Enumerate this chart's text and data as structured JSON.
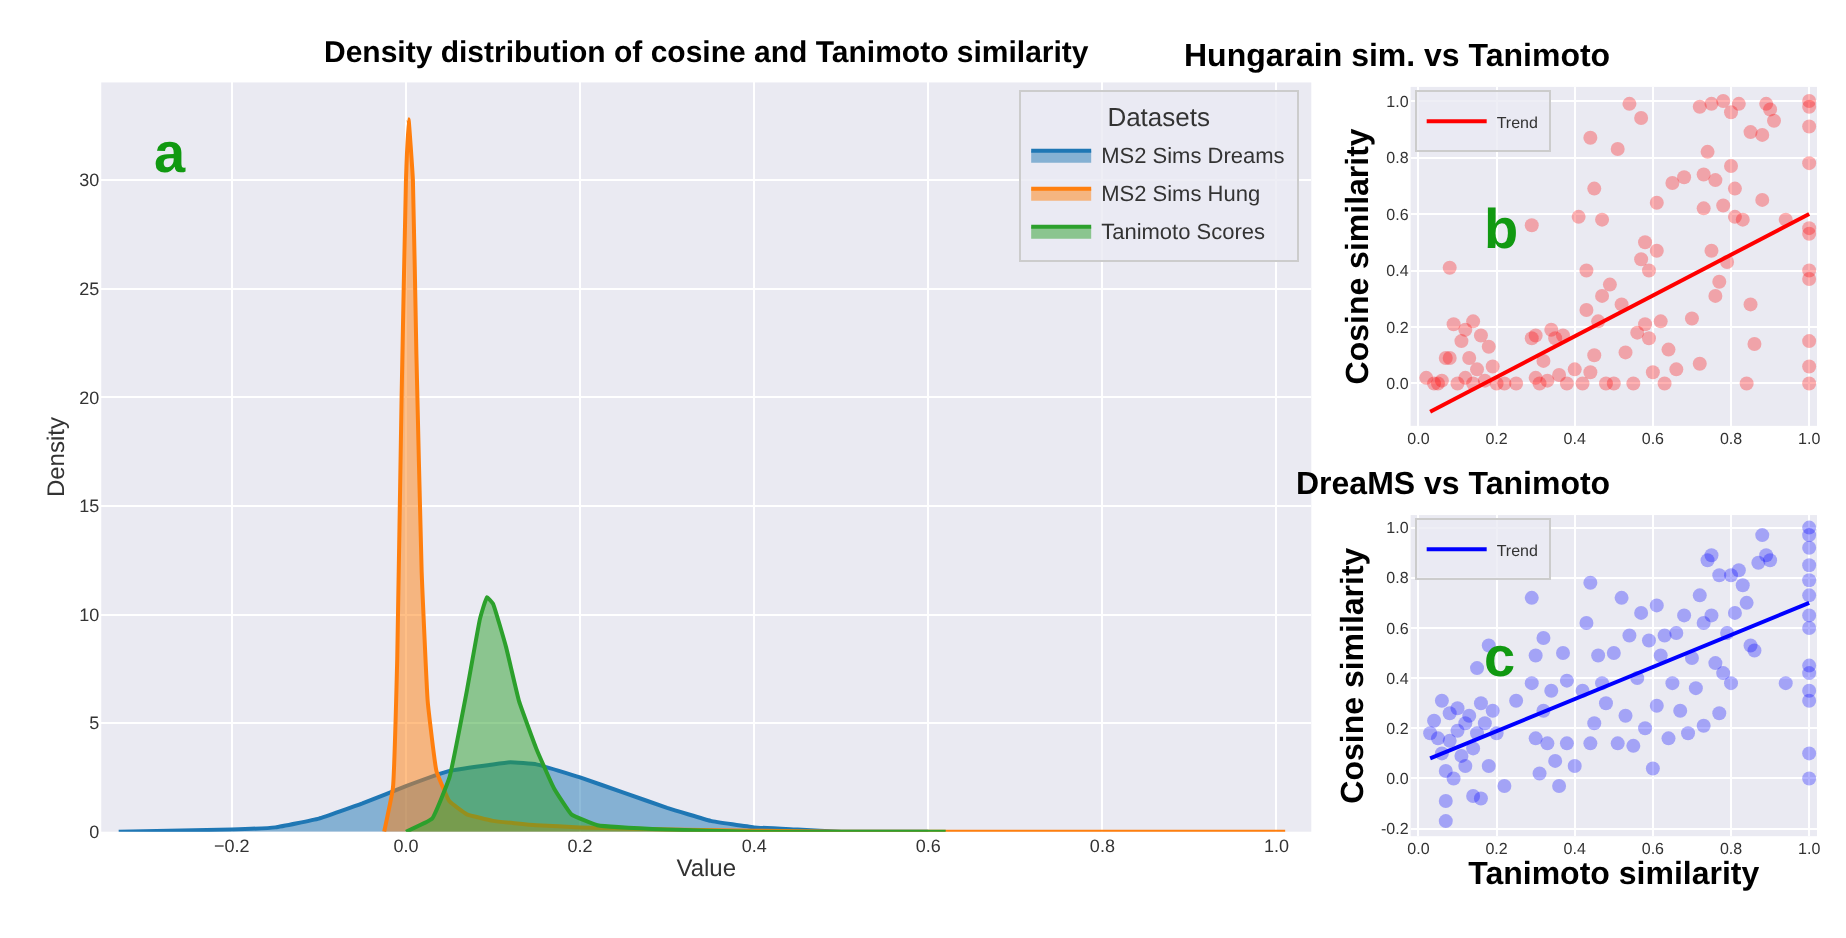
{
  "chart_data": [
    {
      "type": "area",
      "title": "Density distribution of cosine and Tanimoto similarity",
      "xlabel": "Value",
      "ylabel": "Density",
      "legend_title": "Datasets",
      "legend": "top right",
      "grid": true,
      "annotations": [
        "a"
      ],
      "xlim": [
        -0.35,
        1.04
      ],
      "xticks": [
        {
          "value": -0.2,
          "label": "−0.2"
        },
        {
          "value": 0,
          "label": "0.0"
        },
        0.2,
        0.4,
        0.6,
        0.8,
        {
          "value": 1,
          "label": "1.0"
        }
      ],
      "ylim": [
        0,
        34.5
      ],
      "yticks": [
        0,
        5,
        10,
        15,
        20,
        25,
        30
      ],
      "series": [
        {
          "name": "MS2 Sims Dreams",
          "color": "#1f77b4",
          "x": [
            -0.33,
            -0.2,
            -0.15,
            -0.1,
            -0.05,
            0,
            0.05,
            0.1,
            0.12,
            0.15,
            0.2,
            0.25,
            0.3,
            0.35,
            0.4,
            0.45,
            0.5,
            0.6
          ],
          "values": [
            0,
            0.1,
            0.2,
            0.6,
            1.3,
            2.1,
            2.8,
            3.1,
            3.2,
            3.1,
            2.5,
            1.8,
            1.1,
            0.5,
            0.2,
            0.1,
            0,
            0
          ]
        },
        {
          "name": "MS2 Sims Hung",
          "color": "#ff7f0e",
          "x": [
            -0.025,
            -0.015,
            -0.01,
            -0.005,
            0.0,
            0.003,
            0.008,
            0.012,
            0.018,
            0.025,
            0.035,
            0.05,
            0.07,
            0.1,
            0.15,
            0.2,
            0.3,
            0.5,
            0.7,
            1.0,
            1.01
          ],
          "values": [
            0,
            2,
            8,
            20,
            30,
            32.8,
            30,
            22,
            12,
            6,
            2.8,
            1.4,
            0.8,
            0.5,
            0.3,
            0.2,
            0.1,
            0,
            0,
            0,
            0
          ]
        },
        {
          "name": "Tanimoto Scores",
          "color": "#2ca02c",
          "x": [
            0.0,
            0.03,
            0.05,
            0.07,
            0.085,
            0.093,
            0.1,
            0.115,
            0.13,
            0.15,
            0.17,
            0.19,
            0.22,
            0.3,
            0.4,
            0.62
          ],
          "values": [
            0,
            0.6,
            2.5,
            6.5,
            9.8,
            10.8,
            10.5,
            8.5,
            6,
            3.8,
            2,
            0.8,
            0.3,
            0.1,
            0,
            0
          ]
        }
      ]
    },
    {
      "type": "scatter",
      "title": "Hungarain sim. vs Tanimoto",
      "ylabel": "Cosine similarity",
      "legend": "top left",
      "grid": true,
      "annotations": [
        "b"
      ],
      "xlim": [
        -0.02,
        1.02
      ],
      "xticks": [
        {
          "value": 0,
          "label": "0.0"
        },
        0.2,
        0.4,
        0.6,
        0.8,
        {
          "value": 1,
          "label": "1.0"
        }
      ],
      "ylim": [
        -0.15,
        1.05
      ],
      "yticks": [
        {
          "value": 0,
          "label": "0.0"
        },
        0.2,
        0.4,
        0.6,
        0.8,
        {
          "value": 1,
          "label": "1.0"
        }
      ],
      "series": [
        {
          "color": "#ff0000",
          "marker": "circle",
          "x": [
            0.02,
            0.04,
            0.05,
            0.06,
            0.07,
            0.08,
            0.08,
            0.09,
            0.1,
            0.11,
            0.12,
            0.12,
            0.13,
            0.14,
            0.14,
            0.15,
            0.16,
            0.17,
            0.18,
            0.19,
            0.2,
            0.22,
            0.25,
            0.29,
            0.29,
            0.3,
            0.3,
            0.31,
            0.32,
            0.33,
            0.34,
            0.35,
            0.36,
            0.37,
            0.38,
            0.4,
            0.41,
            0.42,
            0.43,
            0.43,
            0.44,
            0.44,
            0.45,
            0.45,
            0.46,
            0.47,
            0.47,
            0.48,
            0.49,
            0.5,
            0.51,
            0.52,
            0.53,
            0.54,
            0.55,
            0.56,
            0.57,
            0.57,
            0.58,
            0.58,
            0.59,
            0.59,
            0.6,
            0.61,
            0.61,
            0.62,
            0.63,
            0.64,
            0.65,
            0.66,
            0.68,
            0.7,
            0.72,
            0.72,
            0.73,
            0.73,
            0.74,
            0.75,
            0.75,
            0.76,
            0.76,
            0.77,
            0.78,
            0.78,
            0.79,
            0.8,
            0.8,
            0.81,
            0.81,
            0.82,
            0.83,
            0.84,
            0.85,
            0.85,
            0.86,
            0.88,
            0.88,
            0.89,
            0.9,
            0.91,
            0.94,
            1.0,
            1.0,
            1.0,
            1.0,
            1.0,
            1.0,
            1.0,
            1.0,
            1.0,
            1.0,
            1.0
          ],
          "values": [
            0.02,
            0,
            0,
            0.01,
            0.09,
            0.41,
            0.09,
            0.21,
            0.0,
            0.15,
            0.02,
            0.19,
            0.09,
            0.22,
            0.0,
            0.05,
            0.17,
            0.01,
            0.13,
            0.06,
            0.0,
            0.0,
            0.0,
            0.56,
            0.16,
            0.02,
            0.17,
            0.0,
            0.08,
            0.01,
            0.19,
            0.16,
            0.03,
            0.17,
            0.0,
            0.05,
            0.59,
            0.0,
            0.4,
            0.26,
            0.87,
            0.04,
            0.69,
            0.1,
            0.22,
            0.58,
            0.31,
            0.0,
            0.35,
            0.0,
            0.83,
            0.28,
            0.11,
            0.99,
            0.0,
            0.18,
            0.94,
            0.44,
            0.5,
            0.21,
            0.4,
            0.16,
            0.04,
            0.64,
            0.47,
            0.22,
            0.0,
            0.12,
            0.71,
            0.05,
            0.73,
            0.23,
            0.98,
            0.07,
            0.62,
            0.74,
            0.82,
            0.99,
            0.47,
            0.72,
            0.31,
            0.36,
            1.0,
            0.63,
            0.43,
            0.77,
            0.96,
            0.69,
            0.59,
            0.99,
            0.58,
            0.0,
            0.89,
            0.28,
            0.14,
            0.88,
            0.65,
            0.99,
            0.97,
            0.93,
            0.58,
            1.0,
            0.98,
            0.91,
            0.78,
            0.55,
            0.53,
            0.4,
            0.37,
            0.15,
            0.06,
            0.0
          ]
        },
        {
          "type": "line",
          "name": "Trend",
          "color": "#ff0000",
          "x": [
            0.03,
            1.0
          ],
          "values": [
            -0.1,
            0.6
          ]
        }
      ]
    },
    {
      "type": "scatter",
      "title": "DreaMS vs Tanimoto",
      "xlabel": "Tanimoto similarity",
      "ylabel": "Cosine similarity",
      "legend": "top left",
      "grid": true,
      "annotations": [
        "c"
      ],
      "xlim": [
        -0.02,
        1.02
      ],
      "xticks": [
        {
          "value": 0,
          "label": "0.0"
        },
        0.2,
        0.4,
        0.6,
        0.8,
        {
          "value": 1,
          "label": "1.0"
        }
      ],
      "ylim": [
        -0.23,
        1.05
      ],
      "yticks": [
        {
          "value": -0.2,
          "label": "-0.2"
        },
        {
          "value": 0,
          "label": "0.0"
        },
        0.2,
        0.4,
        0.6,
        0.8,
        {
          "value": 1,
          "label": "1.0"
        }
      ],
      "series": [
        {
          "color": "#0000ff",
          "marker": "circle",
          "x": [
            0.03,
            0.04,
            0.05,
            0.06,
            0.06,
            0.07,
            0.07,
            0.07,
            0.08,
            0.08,
            0.09,
            0.1,
            0.1,
            0.11,
            0.12,
            0.12,
            0.13,
            0.14,
            0.14,
            0.15,
            0.15,
            0.16,
            0.16,
            0.17,
            0.18,
            0.18,
            0.19,
            0.2,
            0.22,
            0.25,
            0.29,
            0.29,
            0.3,
            0.3,
            0.31,
            0.32,
            0.32,
            0.33,
            0.34,
            0.35,
            0.36,
            0.37,
            0.38,
            0.38,
            0.4,
            0.42,
            0.43,
            0.44,
            0.44,
            0.45,
            0.46,
            0.47,
            0.48,
            0.5,
            0.51,
            0.52,
            0.53,
            0.54,
            0.55,
            0.56,
            0.57,
            0.58,
            0.59,
            0.6,
            0.61,
            0.61,
            0.62,
            0.63,
            0.64,
            0.65,
            0.66,
            0.67,
            0.68,
            0.69,
            0.7,
            0.71,
            0.72,
            0.73,
            0.73,
            0.74,
            0.75,
            0.75,
            0.76,
            0.77,
            0.77,
            0.78,
            0.79,
            0.8,
            0.8,
            0.81,
            0.82,
            0.83,
            0.84,
            0.85,
            0.86,
            0.87,
            0.88,
            0.89,
            0.9,
            0.94,
            1.0,
            1.0,
            1.0,
            1.0,
            1.0,
            1.0,
            1.0,
            1.0,
            1.0,
            1.0,
            1.0,
            1.0,
            1.0,
            1.0
          ],
          "values": [
            0.18,
            0.23,
            0.16,
            0.31,
            0.1,
            -0.17,
            0.03,
            -0.09,
            0.26,
            0.15,
            0.0,
            0.19,
            0.28,
            0.09,
            0.22,
            0.05,
            0.25,
            -0.07,
            0.12,
            0.44,
            0.18,
            0.3,
            -0.08,
            0.22,
            0.53,
            0.05,
            0.27,
            0.18,
            -0.03,
            0.31,
            0.72,
            0.38,
            0.16,
            0.49,
            0.02,
            0.56,
            0.27,
            0.14,
            0.35,
            0.07,
            -0.03,
            0.5,
            0.39,
            0.14,
            0.05,
            0.35,
            0.62,
            0.78,
            0.14,
            0.22,
            0.49,
            0.38,
            0.3,
            0.5,
            0.14,
            0.72,
            0.25,
            0.57,
            0.13,
            0.4,
            0.66,
            0.2,
            0.55,
            0.04,
            0.69,
            0.29,
            0.49,
            0.57,
            0.16,
            0.38,
            0.58,
            0.27,
            0.65,
            0.18,
            0.48,
            0.36,
            0.73,
            0.62,
            0.21,
            0.87,
            0.89,
            0.65,
            0.46,
            0.81,
            0.26,
            0.42,
            0.58,
            0.81,
            0.38,
            0.66,
            0.83,
            0.77,
            0.7,
            0.53,
            0.51,
            0.86,
            0.97,
            0.89,
            0.87,
            0.38,
            1.0,
            0.97,
            0.92,
            0.85,
            0.79,
            0.73,
            0.65,
            0.6,
            0.45,
            0.42,
            0.35,
            0.31,
            0.1,
            0.0
          ]
        },
        {
          "type": "line",
          "name": "Trend",
          "color": "#0000ff",
          "x": [
            0.03,
            1.0
          ],
          "values": [
            0.08,
            0.7
          ]
        }
      ]
    }
  ]
}
